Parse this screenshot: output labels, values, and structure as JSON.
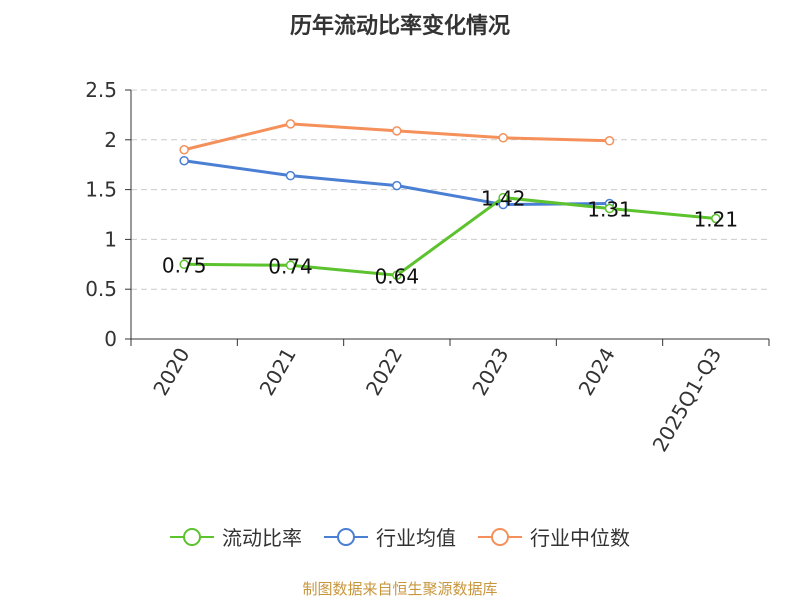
{
  "chart_data": {
    "type": "line",
    "title": "历年流动比率变化情况",
    "categories": [
      "2020",
      "2021",
      "2022",
      "2023",
      "2024",
      "2025Q1-Q3"
    ],
    "ylim": [
      0,
      2.5
    ],
    "yticks": [
      "0",
      "0.5",
      "1",
      "1.5",
      "2",
      "2.5"
    ],
    "series": [
      {
        "name": "流动比率",
        "color": "#5cc22e",
        "values": [
          0.75,
          0.74,
          0.64,
          1.42,
          1.31,
          1.21
        ],
        "labels": [
          "0.75",
          "0.74",
          "0.64",
          "1.42",
          "1.31",
          "1.21"
        ]
      },
      {
        "name": "行业均值",
        "color": "#4a7fd4",
        "values": [
          1.79,
          1.64,
          1.54,
          1.35,
          1.36,
          null
        ]
      },
      {
        "name": "行业中位数",
        "color": "#f5905a",
        "values": [
          1.9,
          2.16,
          2.09,
          2.02,
          1.99,
          null
        ]
      }
    ],
    "grid": true,
    "legend": "bottom"
  },
  "source": "制图数据来自恒生聚源数据库"
}
